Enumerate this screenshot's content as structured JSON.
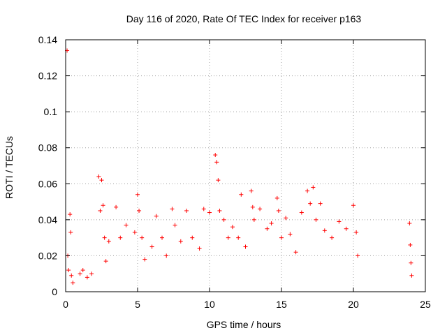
{
  "chart_data": {
    "type": "scatter",
    "title": "Day 116 of 2020, Rate Of TEC Index for receiver p163",
    "xlabel": "GPS time / hours",
    "ylabel": "ROTI / TECUs",
    "xlim": [
      0,
      25
    ],
    "ylim": [
      0,
      0.14
    ],
    "xticks": [
      0,
      5,
      10,
      15,
      20,
      25
    ],
    "xtick_labels": [
      "0",
      "5",
      "10",
      "15",
      "20",
      "25"
    ],
    "yticks": [
      0,
      0.02,
      0.04,
      0.06,
      0.08,
      0.1,
      0.12,
      0.14
    ],
    "ytick_labels": [
      "0",
      "0.02",
      "0.04",
      "0.06",
      "0.08",
      "0.1",
      "0.12",
      "0.14"
    ],
    "grid": true,
    "marker": "plus",
    "color": "#ff0000",
    "series": [
      {
        "x": [
          0.1,
          0.15,
          0.2,
          0.3,
          0.35,
          0.4,
          0.5,
          1.0,
          1.2,
          1.5,
          1.8,
          2.3,
          2.4,
          2.5,
          2.6,
          2.7,
          2.8,
          3.0,
          3.5,
          3.8,
          4.2,
          4.8,
          5.0,
          5.1,
          5.3,
          5.5,
          6.0,
          6.3,
          6.7,
          7.0,
          7.4,
          7.6,
          8.0,
          8.4,
          8.8,
          9.3,
          9.6,
          10.0,
          10.4,
          10.5,
          10.6,
          10.7,
          11.0,
          11.3,
          11.6,
          12.0,
          12.2,
          12.5,
          12.9,
          13.0,
          13.1,
          13.5,
          14.0,
          14.3,
          14.7,
          14.8,
          15.0,
          15.3,
          15.6,
          16.0,
          16.4,
          16.8,
          17.0,
          17.2,
          17.4,
          17.7,
          18.0,
          18.5,
          19.0,
          19.5,
          20.0,
          20.2,
          20.3,
          23.9,
          23.95,
          24.0,
          24.05
        ],
        "y": [
          0.134,
          0.02,
          0.012,
          0.043,
          0.033,
          0.009,
          0.005,
          0.01,
          0.012,
          0.008,
          0.01,
          0.064,
          0.045,
          0.062,
          0.048,
          0.03,
          0.017,
          0.028,
          0.047,
          0.03,
          0.037,
          0.033,
          0.054,
          0.045,
          0.03,
          0.018,
          0.025,
          0.042,
          0.03,
          0.02,
          0.046,
          0.037,
          0.028,
          0.045,
          0.03,
          0.024,
          0.046,
          0.044,
          0.076,
          0.072,
          0.062,
          0.045,
          0.04,
          0.03,
          0.036,
          0.03,
          0.054,
          0.025,
          0.056,
          0.047,
          0.04,
          0.046,
          0.035,
          0.038,
          0.052,
          0.045,
          0.03,
          0.041,
          0.032,
          0.022,
          0.044,
          0.056,
          0.049,
          0.058,
          0.04,
          0.049,
          0.034,
          0.03,
          0.039,
          0.035,
          0.048,
          0.033,
          0.02,
          0.038,
          0.026,
          0.016,
          0.009
        ]
      }
    ]
  }
}
